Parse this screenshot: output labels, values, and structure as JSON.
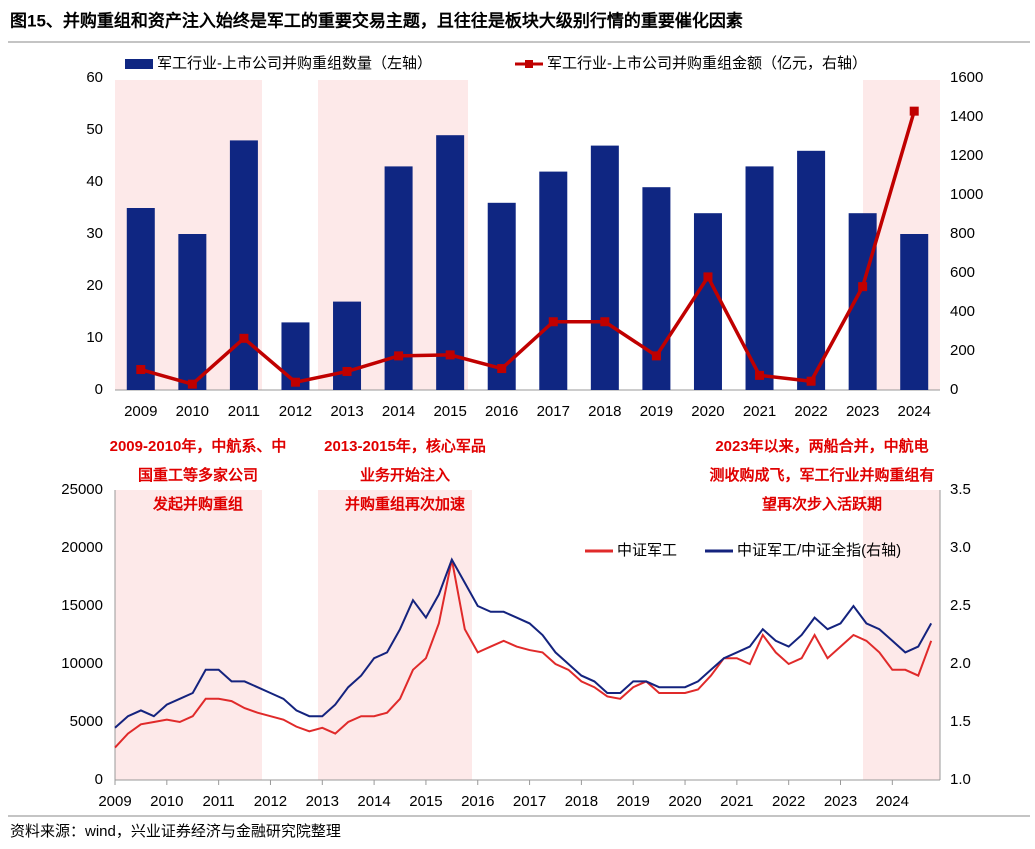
{
  "title": "图15、并购重组和资产注入始终是军工的重要交易主题，且往往是板块大级别行情的重要催化因素",
  "source": "资料来源：wind，兴业证券经济与金融研究院整理",
  "annotations": [
    [
      "2009-2010年，中航系、中",
      "国重工等多家公司",
      "发起并购重组"
    ],
    [
      "2013-2015年，核心军品",
      "业务开始注入",
      "并购重组再次加速"
    ],
    [
      "2023年以来，两船合并，中航电",
      "测收购成飞，军工行业并购重组有",
      "望再次步入活跃期"
    ]
  ],
  "chart_data": [
    {
      "type": "bar",
      "categories": [
        "2009",
        "2010",
        "2011",
        "2012",
        "2013",
        "2014",
        "2015",
        "2016",
        "2017",
        "2018",
        "2019",
        "2020",
        "2021",
        "2022",
        "2023",
        "2024"
      ],
      "series": [
        {
          "name": "军工行业-上市公司并购重组数量（左轴）",
          "type": "bar",
          "color": "#0f2682",
          "values": [
            35,
            30,
            48,
            13,
            17,
            43,
            49,
            36,
            42,
            47,
            39,
            34,
            43,
            46,
            34,
            30
          ]
        },
        {
          "name": "军工行业-上市公司并购重组金额（亿元，右轴）",
          "type": "line",
          "axis": "y2",
          "color": "#c00000",
          "values": [
            105,
            30,
            265,
            40,
            95,
            175,
            180,
            110,
            350,
            350,
            175,
            580,
            75,
            45,
            530,
            1430
          ]
        }
      ],
      "ylim": [
        0,
        60
      ],
      "yticks": [
        0,
        10,
        20,
        30,
        40,
        50,
        60
      ],
      "y2lim": [
        0,
        1600
      ],
      "y2ticks": [
        0,
        200,
        400,
        600,
        800,
        1000,
        1200,
        1400,
        1600
      ]
    },
    {
      "type": "line",
      "x": [
        2009,
        2009.25,
        2009.5,
        2009.75,
        2010,
        2010.25,
        2010.5,
        2010.75,
        2011,
        2011.25,
        2011.5,
        2011.75,
        2012,
        2012.25,
        2012.5,
        2012.75,
        2013,
        2013.25,
        2013.5,
        2013.75,
        2014,
        2014.25,
        2014.5,
        2014.75,
        2015,
        2015.25,
        2015.5,
        2015.75,
        2016,
        2016.25,
        2016.5,
        2016.75,
        2017,
        2017.25,
        2017.5,
        2017.75,
        2018,
        2018.25,
        2018.5,
        2018.75,
        2019,
        2019.25,
        2019.5,
        2019.75,
        2020,
        2020.25,
        2020.5,
        2020.75,
        2021,
        2021.25,
        2021.5,
        2021.75,
        2022,
        2022.25,
        2022.5,
        2022.75,
        2023,
        2023.25,
        2023.5,
        2023.75,
        2024,
        2024.25,
        2024.5,
        2024.75
      ],
      "series": [
        {
          "name": "中证军工",
          "color": "#e02a2a",
          "values": [
            2800,
            4000,
            4800,
            5000,
            5200,
            5000,
            5500,
            7000,
            7000,
            6800,
            6200,
            5800,
            5500,
            5200,
            4600,
            4200,
            4500,
            4000,
            5000,
            5500,
            5500,
            5800,
            7000,
            9500,
            10500,
            13500,
            19000,
            13000,
            11000,
            11500,
            12000,
            11500,
            11200,
            11000,
            10000,
            9500,
            8500,
            8000,
            7200,
            7000,
            8000,
            8500,
            7500,
            7500,
            7500,
            7800,
            9000,
            10500,
            10500,
            10000,
            12500,
            11000,
            10000,
            10500,
            12500,
            10500,
            11500,
            12500,
            12000,
            11000,
            9500,
            9500,
            9000,
            12000
          ]
        },
        {
          "name": "中证军工/中证全指(右轴)",
          "axis": "y2",
          "color": "#14237e",
          "values": [
            1.45,
            1.55,
            1.6,
            1.55,
            1.65,
            1.7,
            1.75,
            1.95,
            1.95,
            1.85,
            1.85,
            1.8,
            1.75,
            1.7,
            1.6,
            1.55,
            1.55,
            1.65,
            1.8,
            1.9,
            2.05,
            2.1,
            2.3,
            2.55,
            2.4,
            2.6,
            2.9,
            2.7,
            2.5,
            2.45,
            2.45,
            2.4,
            2.35,
            2.25,
            2.1,
            2.0,
            1.9,
            1.85,
            1.75,
            1.75,
            1.85,
            1.85,
            1.8,
            1.8,
            1.8,
            1.85,
            1.95,
            2.05,
            2.1,
            2.15,
            2.3,
            2.2,
            2.15,
            2.25,
            2.4,
            2.3,
            2.35,
            2.5,
            2.35,
            2.3,
            2.2,
            2.1,
            2.15,
            2.35
          ]
        }
      ],
      "xlim": [
        2009,
        2024.92
      ],
      "xticks": [
        2009,
        2010,
        2011,
        2012,
        2013,
        2014,
        2015,
        2016,
        2017,
        2018,
        2019,
        2020,
        2021,
        2022,
        2023,
        2024
      ],
      "ylim": [
        0,
        25000
      ],
      "yticks": [
        0,
        5000,
        10000,
        15000,
        20000,
        25000
      ],
      "y2lim": [
        1,
        3.5
      ],
      "y2ticks": [
        {
          "value": 1,
          "label": "1.0"
        },
        1.5,
        {
          "value": 2,
          "label": "2.0"
        },
        2.5,
        {
          "value": 3,
          "label": "3.0"
        },
        3.5
      ]
    }
  ]
}
